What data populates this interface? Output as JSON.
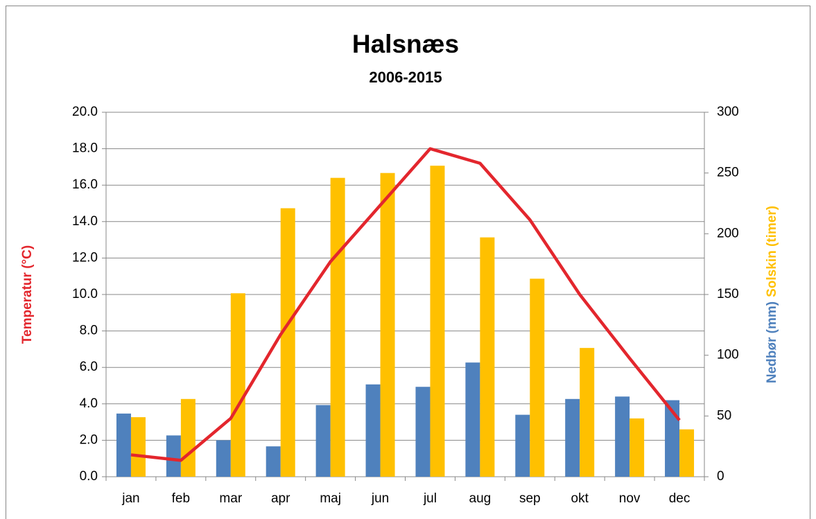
{
  "chart_data": {
    "type": "bar-line",
    "title": "Halsnæs",
    "subtitle": "2006-2015",
    "categories": [
      "jan",
      "feb",
      "mar",
      "apr",
      "maj",
      "jun",
      "jul",
      "aug",
      "sep",
      "okt",
      "nov",
      "dec"
    ],
    "series": [
      {
        "name": "Nedbør (mm)",
        "color": "#4f81bd",
        "type": "bar",
        "axis": "y2",
        "values": [
          52,
          34,
          30,
          25,
          59,
          76,
          74,
          94,
          51,
          64,
          66,
          63
        ]
      },
      {
        "name": "Solskin (timer)",
        "color": "#ffc000",
        "type": "bar",
        "axis": "y2",
        "values": [
          49,
          64,
          151,
          221,
          246,
          250,
          256,
          197,
          163,
          106,
          48,
          39
        ]
      },
      {
        "name": "Temperatur (°C)",
        "color": "#e3262d",
        "type": "line",
        "axis": "y",
        "values": [
          1.2,
          0.9,
          3.2,
          7.8,
          11.8,
          14.9,
          18.0,
          17.2,
          14.1,
          10.0,
          6.5,
          3.1
        ]
      }
    ],
    "ylim": [
      0,
      20
    ],
    "yticks": [
      {
        "value": 0,
        "label": "0.0"
      },
      {
        "value": 2,
        "label": "2.0"
      },
      {
        "value": 4,
        "label": "4.0"
      },
      {
        "value": 6,
        "label": "6.0"
      },
      {
        "value": 8,
        "label": "8.0"
      },
      {
        "value": 10,
        "label": "10.0"
      },
      {
        "value": 12,
        "label": "12.0"
      },
      {
        "value": 14,
        "label": "14.0"
      },
      {
        "value": 16,
        "label": "16.0"
      },
      {
        "value": 18,
        "label": "18.0"
      },
      {
        "value": 20,
        "label": "20.0"
      }
    ],
    "y2lim": [
      0,
      300
    ],
    "y2ticks": [
      0,
      50,
      100,
      150,
      200,
      250,
      300
    ],
    "grid": true
  }
}
